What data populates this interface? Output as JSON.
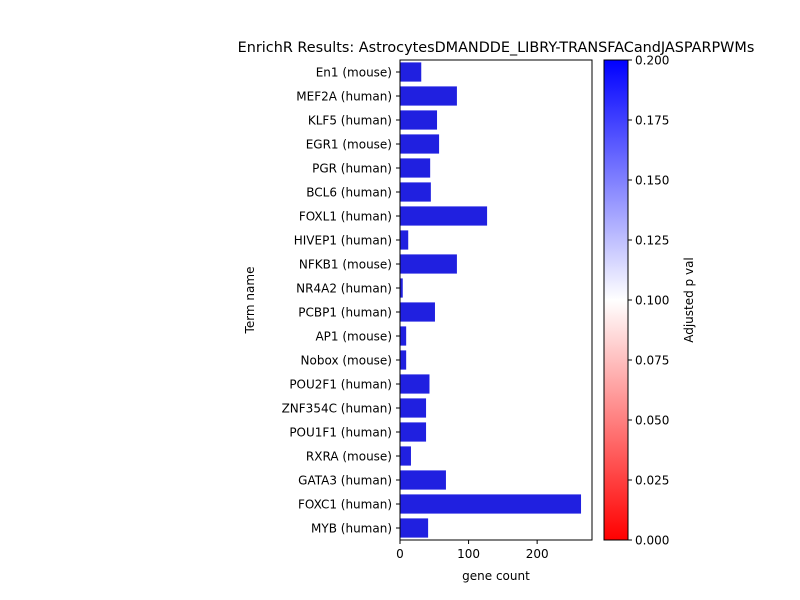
{
  "chart_data": {
    "type": "bar",
    "orientation": "horizontal",
    "title": "EnrichR Results: AstrocytesDMANDDE_LIBRY-TRANSFACandJASPARPWMs",
    "xlabel": "gene count",
    "ylabel": "Term name",
    "xlim": [
      0,
      280
    ],
    "x_ticks": [
      0,
      100,
      200
    ],
    "categories": [
      "En1 (mouse)",
      "MEF2A (human)",
      "KLF5 (human)",
      "EGR1 (mouse)",
      "PGR (human)",
      "BCL6 (human)",
      "FOXL1 (human)",
      "HIVEP1 (human)",
      "NFKB1 (mouse)",
      "NR4A2 (human)",
      "PCBP1 (human)",
      "AP1 (mouse)",
      "Nobox (mouse)",
      "POU2F1 (human)",
      "ZNF354C (human)",
      "POU1F1 (human)",
      "RXRA (mouse)",
      "GATA3 (human)",
      "FOXC1 (human)",
      "MYB (human)"
    ],
    "values": [
      31,
      83,
      54,
      57,
      44,
      45,
      127,
      12,
      83,
      4,
      51,
      9,
      9,
      43,
      38,
      38,
      16,
      67,
      264,
      41
    ],
    "bar_color": "#2020e0",
    "colorbar": {
      "label": "Adjusted p val",
      "range": [
        0.0,
        0.2
      ],
      "ticks": [
        "0.000",
        "0.025",
        "0.050",
        "0.075",
        "0.100",
        "0.125",
        "0.150",
        "0.175",
        "0.200"
      ],
      "colors": [
        "#ff0000",
        "#ffffff",
        "#0000ff"
      ]
    },
    "grid": false,
    "legend": "none"
  }
}
